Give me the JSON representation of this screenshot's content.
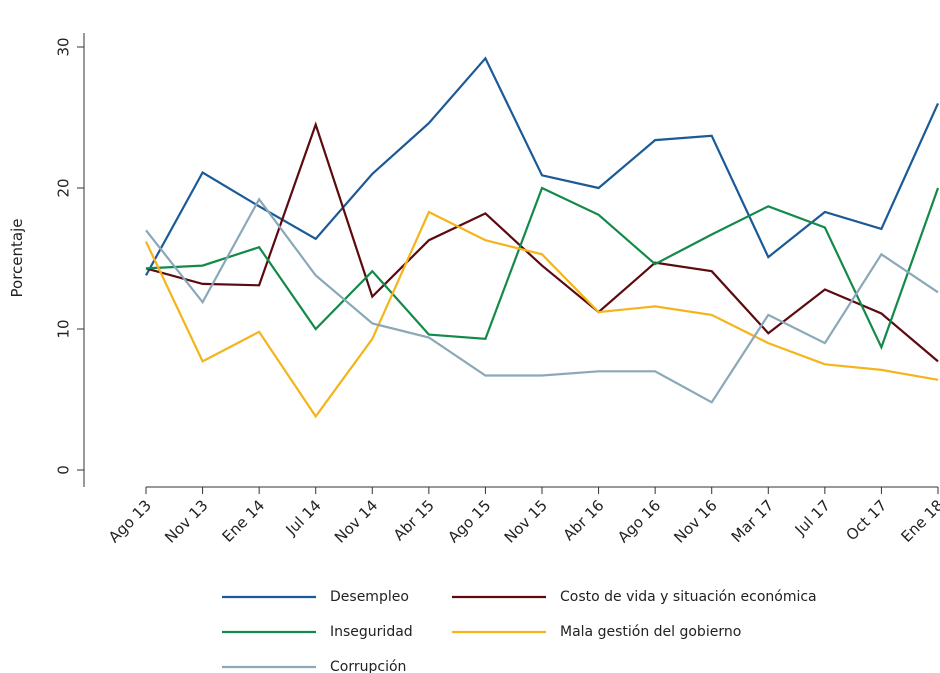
{
  "chart_data": {
    "type": "line",
    "title": "",
    "xlabel": "",
    "ylabel": "Porcentaje",
    "categories": [
      "Ago 13",
      "Nov 13",
      "Ene 14",
      "Jul 14",
      "Nov 14",
      "Abr 15",
      "Ago 15",
      "Nov 15",
      "Abr 16",
      "Ago 16",
      "Nov 16",
      "Mar 17",
      "Jul 17",
      "Oct 17",
      "Ene 18"
    ],
    "ylim": [
      0,
      31
    ],
    "yticks": [
      0,
      10,
      20,
      30
    ],
    "grid": false,
    "legend_position": "bottom",
    "series": [
      {
        "name": "Desempleo",
        "color": "#1a5a96",
        "values": [
          13.8,
          21.1,
          18.7,
          16.4,
          21.0,
          24.6,
          29.2,
          20.9,
          20.0,
          23.4,
          23.7,
          15.1,
          18.3,
          17.1,
          26.0
        ]
      },
      {
        "name": "Costo de vida y situación económica",
        "color": "#5c0a10",
        "values": [
          14.3,
          13.2,
          13.1,
          24.5,
          12.3,
          16.3,
          18.2,
          14.5,
          11.2,
          14.7,
          14.1,
          9.7,
          12.8,
          11.1,
          7.7
        ]
      },
      {
        "name": "Inseguridad",
        "color": "#138a4a",
        "values": [
          14.3,
          14.5,
          15.8,
          10.0,
          14.1,
          9.6,
          9.3,
          20.0,
          18.1,
          14.6,
          16.7,
          18.7,
          17.2,
          8.7,
          20.0
        ]
      },
      {
        "name": "Mala gestión del gobierno",
        "color": "#f4b41a",
        "values": [
          16.2,
          7.7,
          9.8,
          3.8,
          9.3,
          18.3,
          16.3,
          15.3,
          11.2,
          11.6,
          11.0,
          9.0,
          7.5,
          7.1,
          6.4
        ]
      },
      {
        "name": "Corrupción",
        "color": "#8aa8b8",
        "values": [
          17.0,
          11.9,
          19.2,
          13.8,
          10.4,
          9.4,
          6.7,
          6.7,
          7.0,
          7.0,
          4.8,
          11.0,
          9.0,
          15.3,
          12.6
        ]
      }
    ]
  }
}
